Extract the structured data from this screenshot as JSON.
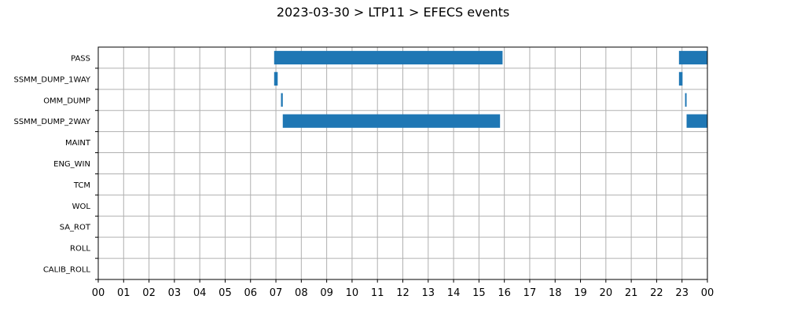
{
  "chart_data": {
    "type": "gantt",
    "title": "2023-03-30 > LTP11 > EFECS events",
    "xlabel": "",
    "ylabel": "",
    "x_range_hours": [
      0,
      24
    ],
    "x_tick_labels": [
      "00",
      "01",
      "02",
      "03",
      "04",
      "05",
      "06",
      "07",
      "08",
      "09",
      "10",
      "11",
      "12",
      "13",
      "14",
      "15",
      "16",
      "17",
      "18",
      "19",
      "20",
      "21",
      "22",
      "23",
      "00"
    ],
    "categories": [
      "PASS",
      "SSMM_DUMP_1WAY",
      "OMM_DUMP",
      "SSMM_DUMP_2WAY",
      "MAINT",
      "ENG_WIN",
      "TCM",
      "WOL",
      "SA_ROT",
      "ROLL",
      "CALIB_ROLL"
    ],
    "events": [
      {
        "category": "PASS",
        "start": 6.93,
        "end": 15.93
      },
      {
        "category": "PASS",
        "start": 22.88,
        "end": 24.0
      },
      {
        "category": "SSMM_DUMP_1WAY",
        "start": 6.93,
        "end": 7.07
      },
      {
        "category": "SSMM_DUMP_1WAY",
        "start": 22.88,
        "end": 23.02
      },
      {
        "category": "OMM_DUMP",
        "start": 7.2,
        "end": 7.27
      },
      {
        "category": "OMM_DUMP",
        "start": 23.12,
        "end": 23.18
      },
      {
        "category": "SSMM_DUMP_2WAY",
        "start": 7.27,
        "end": 15.83
      },
      {
        "category": "SSMM_DUMP_2WAY",
        "start": 23.18,
        "end": 24.0
      }
    ],
    "bar_color": "#1f77b4",
    "grid": true,
    "legend": "none"
  }
}
